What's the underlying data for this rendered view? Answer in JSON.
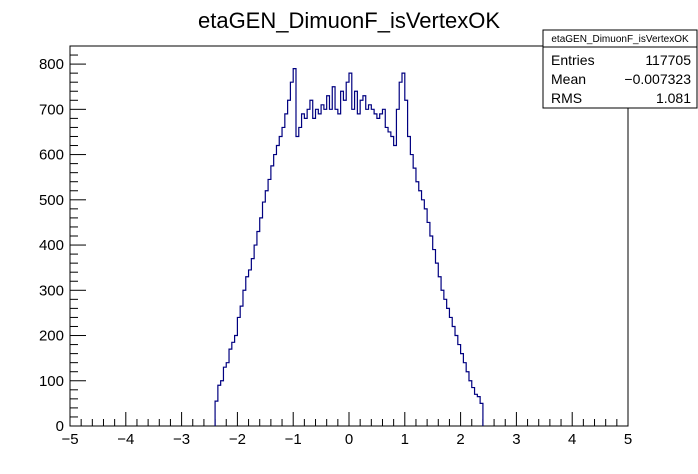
{
  "chart_data": {
    "type": "bar",
    "title": "etaGEN_DimuonF_isVertexOK",
    "xlabel": "",
    "ylabel": "",
    "xlim": [
      -5,
      5
    ],
    "ylim": [
      0,
      840
    ],
    "x_ticks": [
      -5,
      -4,
      -3,
      -2,
      -1,
      0,
      1,
      2,
      3,
      4,
      5
    ],
    "x_tick_labels": [
      "−5",
      "−4",
      "−3",
      "−2",
      "−1",
      "0",
      "1",
      "2",
      "3",
      "4",
      "5"
    ],
    "y_ticks": [
      0,
      100,
      200,
      300,
      400,
      500,
      600,
      700,
      800
    ],
    "y_tick_labels": [
      "0",
      "100",
      "200",
      "300",
      "400",
      "500",
      "600",
      "700",
      "800"
    ],
    "grid": false,
    "legend": "top-right",
    "line_color": "#000080",
    "bins": {
      "edges": [
        -2.4,
        -2.35,
        -2.3,
        -2.25,
        -2.2,
        -2.15,
        -2.1,
        -2.05,
        -2.0,
        -1.95,
        -1.9,
        -1.85,
        -1.8,
        -1.75,
        -1.7,
        -1.65,
        -1.6,
        -1.55,
        -1.5,
        -1.45,
        -1.4,
        -1.35,
        -1.3,
        -1.25,
        -1.2,
        -1.15,
        -1.1,
        -1.05,
        -1.0,
        -0.95,
        -0.9,
        -0.85,
        -0.8,
        -0.75,
        -0.7,
        -0.65,
        -0.6,
        -0.55,
        -0.5,
        -0.45,
        -0.4,
        -0.35,
        -0.3,
        -0.25,
        -0.2,
        -0.15,
        -0.1,
        -0.05,
        0.0,
        0.05,
        0.1,
        0.15,
        0.2,
        0.25,
        0.3,
        0.35,
        0.4,
        0.45,
        0.5,
        0.55,
        0.6,
        0.65,
        0.7,
        0.75,
        0.8,
        0.85,
        0.9,
        0.95,
        1.0,
        1.05,
        1.1,
        1.15,
        1.2,
        1.25,
        1.3,
        1.35,
        1.4,
        1.45,
        1.5,
        1.55,
        1.6,
        1.65,
        1.7,
        1.75,
        1.8,
        1.85,
        1.9,
        1.95,
        2.0,
        2.05,
        2.1,
        2.15,
        2.2,
        2.25,
        2.3,
        2.35,
        2.4
      ],
      "values": [
        55,
        90,
        100,
        130,
        140,
        170,
        185,
        200,
        240,
        265,
        300,
        330,
        345,
        370,
        400,
        430,
        460,
        495,
        520,
        545,
        575,
        600,
        620,
        640,
        660,
        690,
        720,
        760,
        790,
        640,
        660,
        690,
        680,
        700,
        720,
        680,
        700,
        690,
        710,
        700,
        730,
        700,
        750,
        700,
        690,
        740,
        720,
        760,
        780,
        700,
        740,
        690,
        720,
        730,
        700,
        710,
        700,
        690,
        680,
        690,
        700,
        660,
        650,
        640,
        620,
        700,
        760,
        780,
        720,
        640,
        600,
        570,
        540,
        520,
        500,
        480,
        450,
        420,
        390,
        360,
        330,
        300,
        280,
        260,
        240,
        220,
        200,
        180,
        160,
        140,
        120,
        100,
        85,
        70,
        65,
        50
      ]
    },
    "stats": {
      "title": "etaGEN_DimuonF_isVertexOK",
      "rows": [
        {
          "label": "Entries",
          "value": "117705"
        },
        {
          "label": "Mean",
          "value": "−0.007323"
        },
        {
          "label": "RMS",
          "value": "1.081"
        }
      ]
    }
  }
}
